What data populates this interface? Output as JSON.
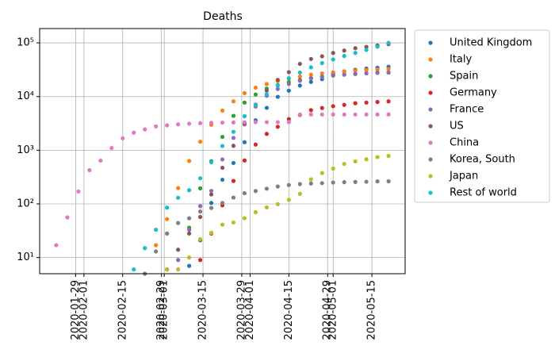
{
  "chart_data": {
    "type": "scatter",
    "title": "Deaths",
    "log_y": true,
    "grid": true,
    "legend_position": "outside-right",
    "x": [
      "2020-01-22",
      "2020-01-26",
      "2020-01-30",
      "2020-02-03",
      "2020-02-07",
      "2020-02-11",
      "2020-02-15",
      "2020-02-19",
      "2020-02-23",
      "2020-02-27",
      "2020-03-02",
      "2020-03-06",
      "2020-03-10",
      "2020-03-14",
      "2020-03-18",
      "2020-03-22",
      "2020-03-26",
      "2020-03-30",
      "2020-04-03",
      "2020-04-07",
      "2020-04-11",
      "2020-04-15",
      "2020-04-19",
      "2020-04-23",
      "2020-04-27",
      "2020-05-01",
      "2020-05-05",
      "2020-05-09",
      "2020-05-13",
      "2020-05-17",
      "2020-05-21"
    ],
    "xlim": [
      "2020-01-16",
      "2020-05-27"
    ],
    "xticks": [
      "2020-01-29",
      "2020-02-01",
      "2020-02-15",
      "2020-02-29",
      "2020-03-01",
      "2020-03-15",
      "2020-03-29",
      "2020-04-01",
      "2020-04-15",
      "2020-04-29",
      "2020-05-01",
      "2020-05-15"
    ],
    "ylim": [
      5,
      185000
    ],
    "yticks": [
      {
        "value": 10,
        "label": "10¹"
      },
      {
        "value": 100,
        "label": "10²"
      },
      {
        "value": 1000,
        "label": "10³"
      },
      {
        "value": 10000,
        "label": "10⁴"
      },
      {
        "value": 100000,
        "label": "10⁵"
      }
    ],
    "series": [
      {
        "name": "United Kingdom",
        "color": "#1f77b4",
        "values": [
          null,
          null,
          null,
          null,
          null,
          null,
          null,
          null,
          null,
          null,
          null,
          null,
          7,
          21,
          104,
          282,
          578,
          1411,
          3611,
          6159,
          9875,
          12868,
          16060,
          18738,
          21092,
          26771,
          29427,
          31587,
          33186,
          34546,
          36042
        ]
      },
      {
        "name": "Italy",
        "color": "#ff7f0e",
        "values": [
          null,
          null,
          null,
          null,
          null,
          null,
          null,
          null,
          null,
          17,
          52,
          197,
          631,
          1441,
          2978,
          5476,
          8165,
          11591,
          14681,
          17127,
          19468,
          21645,
          23660,
          25549,
          26977,
          28236,
          29315,
          30395,
          31106,
          31908,
          32486
        ]
      },
      {
        "name": "Spain",
        "color": "#2ca02c",
        "values": [
          null,
          null,
          null,
          null,
          null,
          null,
          null,
          null,
          null,
          null,
          null,
          null,
          36,
          195,
          623,
          1772,
          4365,
          7716,
          10935,
          14045,
          16353,
          18579,
          20453,
          22157,
          23521,
          24824,
          25613,
          26478,
          27104,
          27650,
          27940
        ]
      },
      {
        "name": "Germany",
        "color": "#d62728",
        "values": [
          null,
          null,
          null,
          null,
          null,
          null,
          null,
          null,
          null,
          null,
          null,
          null,
          null,
          9,
          28,
          94,
          267,
          645,
          1275,
          2016,
          2736,
          3804,
          4538,
          5575,
          6126,
          6623,
          6993,
          7510,
          7723,
          7938,
          8144
        ]
      },
      {
        "name": "France",
        "color": "#9467bd",
        "values": [
          null,
          null,
          null,
          null,
          null,
          null,
          null,
          null,
          null,
          null,
          null,
          9,
          33,
          91,
          175,
          674,
          1698,
          3024,
          6520,
          10343,
          13851,
          17188,
          19744,
          21889,
          23327,
          24594,
          25537,
          26346,
          27077,
          28111,
          28218
        ]
      },
      {
        "name": "US",
        "color": "#8c564b",
        "values": [
          null,
          null,
          null,
          null,
          null,
          null,
          null,
          null,
          null,
          null,
          6,
          14,
          28,
          57,
          150,
          471,
          1209,
          3170,
          7087,
          12907,
          20463,
          28529,
          40683,
          50243,
          56259,
          65068,
          71931,
          79634,
          84136,
          89562,
          94702
        ]
      },
      {
        "name": "China",
        "color": "#e377c2",
        "values": [
          17,
          56,
          170,
          425,
          640,
          1100,
          1670,
          2120,
          2440,
          2780,
          2910,
          3040,
          3130,
          3190,
          3240,
          3270,
          3290,
          3310,
          3330,
          3340,
          3340,
          3340,
          4630,
          4630,
          4630,
          4630,
          4630,
          4630,
          4630,
          4640,
          4640
        ]
      },
      {
        "name": "Korea, South",
        "color": "#7f7f7f",
        "values": [
          null,
          null,
          null,
          null,
          null,
          null,
          null,
          null,
          5,
          13,
          28,
          44,
          54,
          72,
          84,
          104,
          131,
          158,
          174,
          192,
          211,
          225,
          234,
          240,
          244,
          250,
          254,
          256,
          259,
          263,
          264
        ]
      },
      {
        "name": "Japan",
        "color": "#bcbd22",
        "values": [
          null,
          null,
          null,
          null,
          null,
          null,
          null,
          null,
          null,
          null,
          6,
          6,
          10,
          22,
          29,
          41,
          45,
          54,
          70,
          86,
          99,
          119,
          154,
          287,
          376,
          455,
          556,
          621,
          678,
          744,
          784
        ]
      },
      {
        "name": "Rest of world",
        "color": "#17becf",
        "values": [
          null,
          null,
          null,
          null,
          null,
          null,
          null,
          6,
          15,
          33,
          85,
          130,
          180,
          300,
          600,
          1200,
          2200,
          4300,
          7000,
          11000,
          16000,
          22000,
          28000,
          35000,
          42000,
          49000,
          57000,
          65000,
          74000,
          85000,
          100000
        ]
      }
    ]
  }
}
